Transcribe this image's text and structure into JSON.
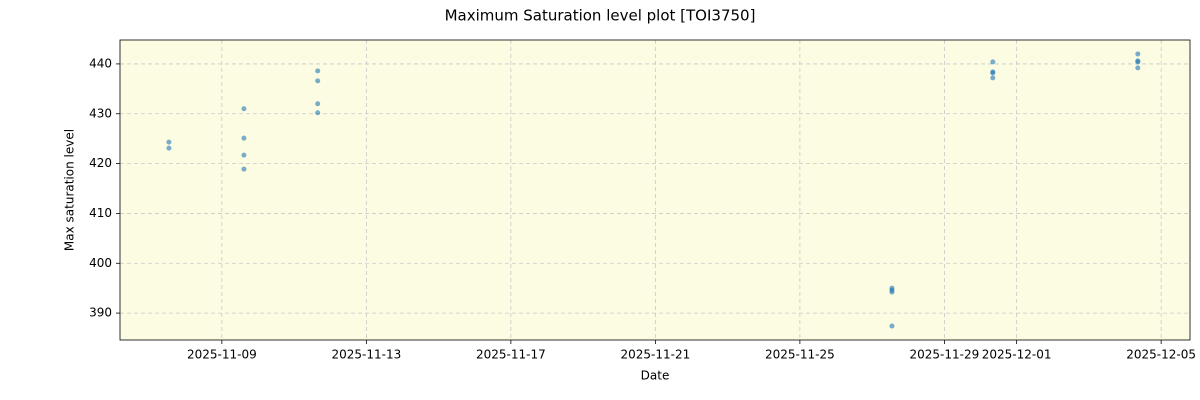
{
  "chart_data": {
    "type": "scatter",
    "title": "Maximum Saturation level plot [TOI3750]",
    "xlabel": "Date",
    "ylabel": "Max saturation level",
    "x": [
      "2025-11-07T12:50",
      "2025-11-07T12:50",
      "2025-11-09T14:40",
      "2025-11-09T14:40",
      "2025-11-09T14:40",
      "2025-11-09T14:40",
      "2025-11-11T15:40",
      "2025-11-11T15:40",
      "2025-11-11T15:40",
      "2025-11-11T15:40",
      "2025-11-27T13:10",
      "2025-11-27T13:10",
      "2025-11-27T13:10",
      "2025-11-27T13:10",
      "2025-11-30T08:10",
      "2025-11-30T08:10",
      "2025-11-30T08:10",
      "2025-11-30T08:10",
      "2025-12-04T08:30",
      "2025-12-04T08:30",
      "2025-12-04T08:30",
      "2025-12-04T08:30"
    ],
    "values": [
      424.3,
      423.1,
      431.0,
      425.1,
      421.7,
      418.9,
      438.6,
      436.6,
      432.0,
      430.2,
      395.0,
      394.6,
      394.2,
      387.4,
      440.4,
      438.4,
      438.2,
      437.2,
      442.0,
      440.6,
      440.4,
      439.2
    ],
    "color": "#1f77b4",
    "background": "#fcfce3",
    "xlim": [
      "2025-11-06T04:20",
      "2025-12-05T19:10"
    ],
    "xticks": [
      "2025-11-09",
      "2025-11-13",
      "2025-11-17",
      "2025-11-21",
      "2025-11-25",
      "2025-11-29",
      "2025-12-01",
      "2025-12-05"
    ],
    "ylim": [
      384.6,
      444.8
    ],
    "yticks": [
      390,
      400,
      410,
      420,
      430,
      440
    ],
    "grid": true
  }
}
